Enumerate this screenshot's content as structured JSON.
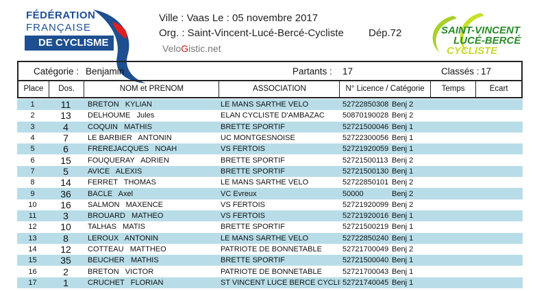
{
  "logo_left": {
    "line1": "FÉDÉRATION",
    "line2": "FRANÇAISE",
    "line3": "DE CYCLISME"
  },
  "header": {
    "ville_line": "Ville :  Vaas  Le :  05 novembre 2017",
    "org_line": "Org. :  Saint-Vincent-Lucé-Bercé-Cycliste",
    "dep": "Dép.72",
    "site_pre": "Velo",
    "site_g": "G",
    "site_post": "istic.net"
  },
  "logo_right": {
    "line1": "SAINT-VINCENT",
    "line2": "LUCÉ-BERCÉ",
    "line3": "CYCLISTE"
  },
  "summary": {
    "categorie_label": "Catégorie :",
    "categorie": "Benjamin",
    "partants_label": "Partants :",
    "partants": "17",
    "classes_label": "Classés :",
    "classes": "17"
  },
  "columns": [
    "Place",
    "Dos.",
    "NOM et PRENOM",
    "ASSOCIATION",
    "N° Licence / Catégorie",
    "Temps",
    "Ecart"
  ],
  "colors": {
    "row_alt": "#b8dde8",
    "ffc_blue": "#1d4f91",
    "club_green": "#2a8a2a"
  },
  "rows": [
    {
      "place": "1",
      "dos": "11",
      "name": "BRETON   KYLIAN",
      "assoc": "LE MANS SARTHE VELO",
      "licence": "52722850308",
      "cat": "Benj 2"
    },
    {
      "place": "2",
      "dos": "13",
      "name": "DELHOUME   Jules",
      "assoc": "ELAN CYCLISTE D'AMBAZAC",
      "licence": "50870190028",
      "cat": "Benj 2"
    },
    {
      "place": "3",
      "dos": "4",
      "name": "COQUIN   MATHIS",
      "assoc": "BRETTE SPORTIF",
      "licence": "52721500046",
      "cat": "Benj 1"
    },
    {
      "place": "4",
      "dos": "7",
      "name": "LE BARBIER   ANTONIN",
      "assoc": "UC MONTGESNOISE",
      "licence": "52722300056",
      "cat": "Benj 1"
    },
    {
      "place": "5",
      "dos": "6",
      "name": "FREREJACQUES   NOAH",
      "assoc": "VS FERTOIS",
      "licence": "52721920059",
      "cat": "Benj 1"
    },
    {
      "place": "6",
      "dos": "15",
      "name": "FOUQUERAY   ADRIEN",
      "assoc": "BRETTE SPORTIF",
      "licence": "52721500113",
      "cat": "Benj 2"
    },
    {
      "place": "7",
      "dos": "5",
      "name": "AVICE   ALEXIS",
      "assoc": "BRETTE SPORTIF",
      "licence": "52721500130",
      "cat": "Benj 1"
    },
    {
      "place": "8",
      "dos": "14",
      "name": "FERRET   THOMAS",
      "assoc": "LE MANS SARTHE VELO",
      "licence": "52722850101",
      "cat": "Benj 2"
    },
    {
      "place": "9",
      "dos": "36",
      "name": "BACLE   Axel",
      "assoc": "VC Evreux",
      "licence": "50000",
      "cat": "Benj 2"
    },
    {
      "place": "10",
      "dos": "16",
      "name": "SALMON   MAXENCE",
      "assoc": "VS FERTOIS",
      "licence": "52721920099",
      "cat": "Benj 2"
    },
    {
      "place": "11",
      "dos": "3",
      "name": "BROUARD   MATHEO",
      "assoc": "VS FERTOIS",
      "licence": "52721920016",
      "cat": "Benj 1"
    },
    {
      "place": "12",
      "dos": "10",
      "name": "TALHAS   MATIS",
      "assoc": "BRETTE SPORTIF",
      "licence": "52721500219",
      "cat": "Benj 1"
    },
    {
      "place": "13",
      "dos": "8",
      "name": "LEROUX   ANTONIN",
      "assoc": "LE MANS SARTHE VELO",
      "licence": "52722850240",
      "cat": "Benj 1"
    },
    {
      "place": "14",
      "dos": "12",
      "name": "COTTEAU   MATTHEO",
      "assoc": "PATRIOTE DE BONNETABLE",
      "licence": "52721700049",
      "cat": "Benj 2"
    },
    {
      "place": "15",
      "dos": "35",
      "name": "BEUCHER   MATHIS",
      "assoc": "BRETTE SPORTIF",
      "licence": "52721500040",
      "cat": "Benj 1"
    },
    {
      "place": "16",
      "dos": "2",
      "name": "BRETON   VICTOR",
      "assoc": "PATRIOTE DE BONNETABLE",
      "licence": "52721700043",
      "cat": "Benj 1"
    },
    {
      "place": "17",
      "dos": "1",
      "name": "CRUCHET   FLORIAN",
      "assoc": "ST VINCENT LUCE BERCE CYCLIS",
      "licence": "52721740045",
      "cat": "Benj 1"
    }
  ]
}
